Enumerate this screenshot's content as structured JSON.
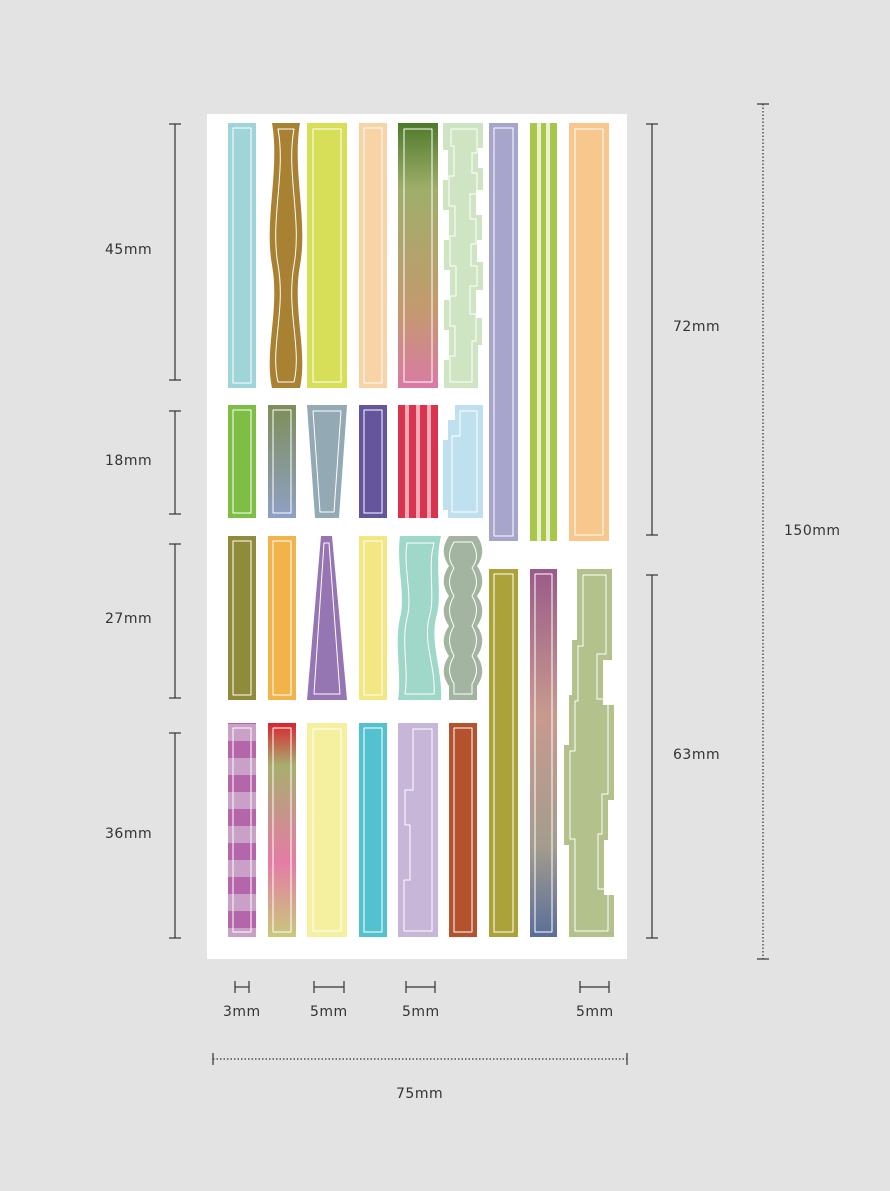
{
  "dimensions": {
    "left": [
      "45mm",
      "18mm",
      "27mm",
      "36mm"
    ],
    "right_sections": [
      "72mm",
      "63mm"
    ],
    "total_height": "150mm",
    "widths": [
      "3mm",
      "5mm",
      "5mm",
      "5mm"
    ],
    "total_width": "75mm"
  },
  "colors": {
    "background": "#e3e3e3",
    "sheet": "#ffffff",
    "line": "#333333",
    "sticker_outline": "#ffffff"
  }
}
